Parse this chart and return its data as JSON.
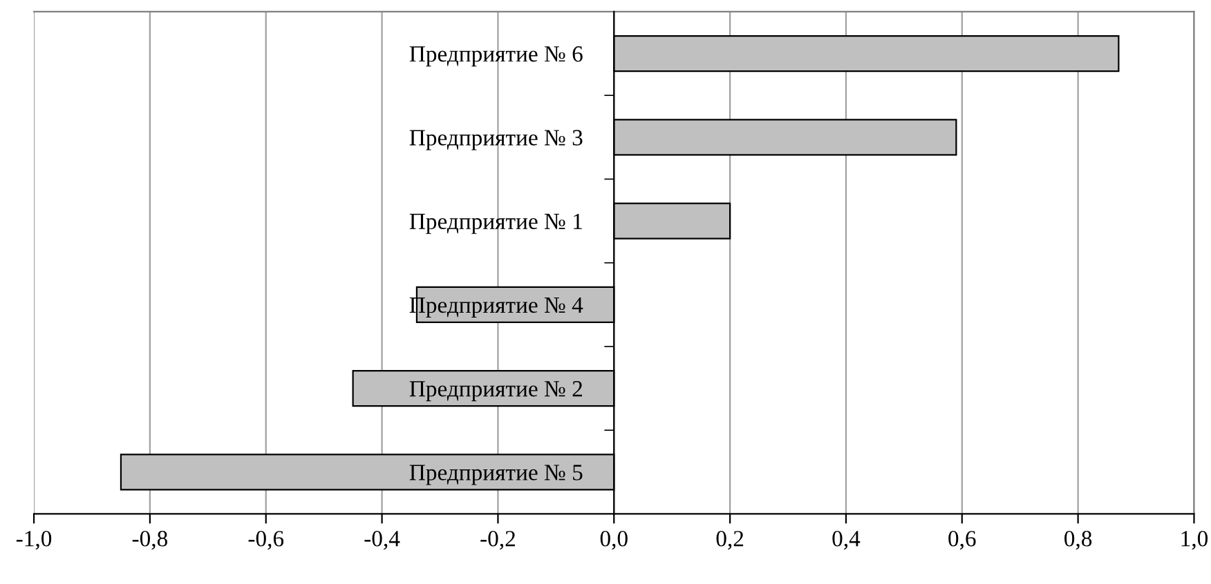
{
  "chart_data": {
    "type": "bar",
    "orientation": "horizontal",
    "categories": [
      "Предприятие № 6",
      "Предприятие № 3",
      "Предприятие № 1",
      "Предприятие № 4",
      "Предприятие № 2",
      "Предприятие № 5"
    ],
    "values": [
      0.87,
      0.59,
      0.2,
      -0.34,
      -0.45,
      -0.85
    ],
    "color": "#c0c0c0",
    "xlim": [
      -1,
      1
    ],
    "xticks": [
      {
        "value": -1,
        "label": "-1,0"
      },
      {
        "value": -0.8,
        "label": "-0,8"
      },
      {
        "value": -0.6,
        "label": "-0,6"
      },
      {
        "value": -0.4,
        "label": "-0,4"
      },
      {
        "value": -0.2,
        "label": "-0,2"
      },
      {
        "value": 0,
        "label": "0,0"
      },
      {
        "value": 0.2,
        "label": "0,2"
      },
      {
        "value": 0.4,
        "label": "0,4"
      },
      {
        "value": 0.6,
        "label": "0,6"
      },
      {
        "value": 0.8,
        "label": "0,8"
      },
      {
        "value": 1,
        "label": "1,0"
      }
    ],
    "grid": "x",
    "legend": false
  }
}
